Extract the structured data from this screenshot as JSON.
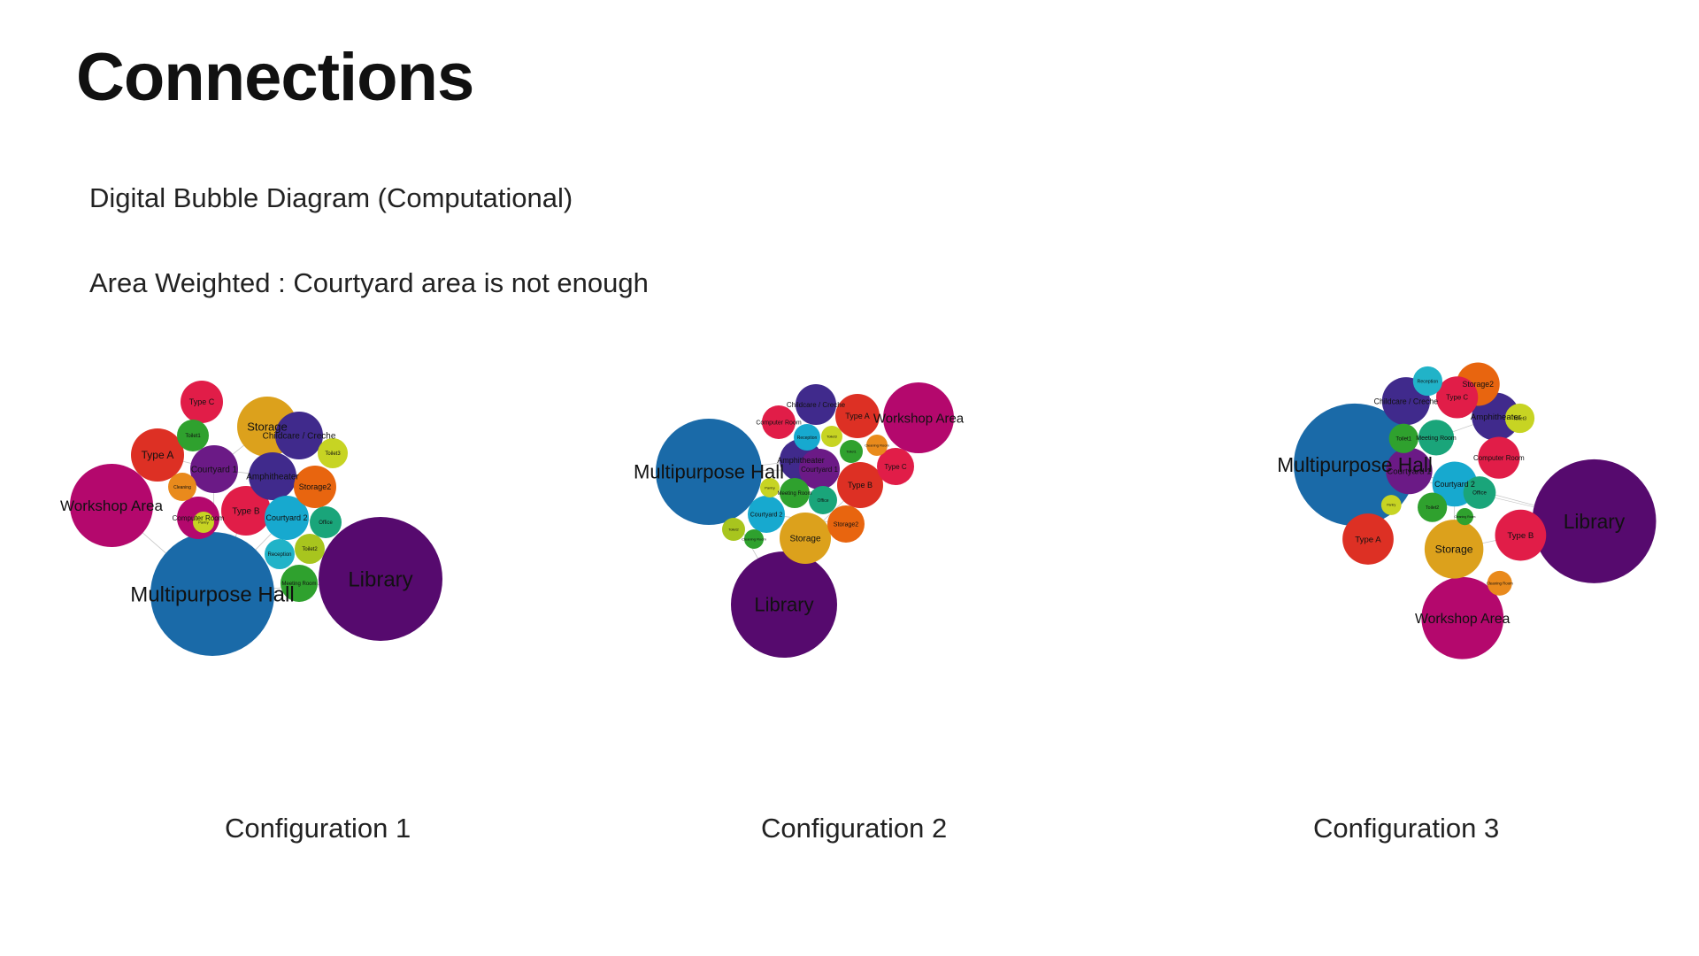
{
  "page": {
    "title": "Connections",
    "subtitle": "Digital Bubble Diagram (Computational)",
    "note": "Area Weighted : Courtyard area is not enough"
  },
  "colors": {
    "blue": "#1a6aa8",
    "purple": "#560a6e",
    "magenta": "#b4086d",
    "indigo": "#402a8c",
    "crimson": "#e11d48",
    "red": "#dd3024",
    "gold": "#dca11c",
    "orange": "#e8650f",
    "light-orange": "#e98a1c",
    "green": "#2fa12e",
    "lime": "#a8c51e",
    "yellow-green": "#c7d423",
    "cyan": "#17a9cf",
    "teal": "#1aa57a",
    "sky": "#21b3c8",
    "violet": "#6b1a86"
  },
  "diagrams": [
    {
      "caption": "Configuration 1",
      "bubbles": [
        {
          "label": "Type C",
          "color": "#e11d48"
        },
        {
          "label": "Toilet1",
          "color": "#2fa12e"
        },
        {
          "label": "Storage",
          "color": "#dca11c"
        },
        {
          "label": "Childcare / Creche",
          "color": "#402a8c"
        },
        {
          "label": "Type A",
          "color": "#dd3024"
        },
        {
          "label": "Toilet3",
          "color": "#c7d423"
        },
        {
          "label": "Courtyard 1",
          "color": "#6b1a86"
        },
        {
          "label": "Amphitheater",
          "color": "#402a8c"
        },
        {
          "label": "Cleaning",
          "color": "#e98a1c"
        },
        {
          "label": "Storage2",
          "color": "#e8650f"
        },
        {
          "label": "Workshop Area",
          "color": "#b4086d"
        },
        {
          "label": "Type B",
          "color": "#e11d48"
        },
        {
          "label": "Computer Room",
          "color": "#b4086d"
        },
        {
          "label": "Pantry",
          "color": "#c7d423"
        },
        {
          "label": "Courtyard 2",
          "color": "#17a9cf"
        },
        {
          "label": "Office",
          "color": "#1aa57a"
        },
        {
          "label": "Reception",
          "color": "#21b3c8"
        },
        {
          "label": "Toilet2",
          "color": "#a8c51e"
        },
        {
          "label": "Meeting Room",
          "color": "#2fa12e"
        },
        {
          "label": "Multipurpose Hall",
          "color": "#1a6aa8"
        },
        {
          "label": "Library",
          "color": "#560a6e"
        }
      ]
    },
    {
      "caption": "Configuration 2",
      "bubbles": [
        {
          "label": "Multipurpose Hall",
          "color": "#1a6aa8"
        },
        {
          "label": "Library",
          "color": "#560a6e"
        },
        {
          "label": "Workshop Area",
          "color": "#b4086d"
        },
        {
          "label": "Childcare / Creche",
          "color": "#402a8c"
        },
        {
          "label": "Computer Room",
          "color": "#e11d48"
        },
        {
          "label": "Type A",
          "color": "#dd3024"
        },
        {
          "label": "Amphitheater",
          "color": "#402a8c"
        },
        {
          "label": "Reception",
          "color": "#17a9cf"
        },
        {
          "label": "Toilet3",
          "color": "#c7d423"
        },
        {
          "label": "Toilet1",
          "color": "#2fa12e"
        },
        {
          "label": "Cleaning Room",
          "color": "#e98a1c"
        },
        {
          "label": "Type C",
          "color": "#e11d48"
        },
        {
          "label": "Courtyard 1",
          "color": "#6b1a86"
        },
        {
          "label": "Type B",
          "color": "#dd3024"
        },
        {
          "label": "Pantry",
          "color": "#c7d423"
        },
        {
          "label": "Meeting Room",
          "color": "#2fa12e"
        },
        {
          "label": "Office",
          "color": "#1aa57a"
        },
        {
          "label": "Courtyard 2",
          "color": "#17a9cf"
        },
        {
          "label": "Storage2",
          "color": "#e8650f"
        },
        {
          "label": "Storage",
          "color": "#dca11c"
        },
        {
          "label": "Toilet2",
          "color": "#a8c51e"
        },
        {
          "label": "Cleaning Room",
          "color": "#2fa12e"
        }
      ]
    },
    {
      "caption": "Configuration 3",
      "bubbles": [
        {
          "label": "Reception",
          "color": "#21b3c8"
        },
        {
          "label": "Storage2",
          "color": "#e8650f"
        },
        {
          "label": "Childcare / Creche",
          "color": "#402a8c"
        },
        {
          "label": "Type C",
          "color": "#e11d48"
        },
        {
          "label": "Amphitheater",
          "color": "#402a8c"
        },
        {
          "label": "Toilet3",
          "color": "#c7d423"
        },
        {
          "label": "Multipurpose Hall",
          "color": "#1a6aa8"
        },
        {
          "label": "Toilet1",
          "color": "#2fa12e"
        },
        {
          "label": "Meeting Room",
          "color": "#1aa57a"
        },
        {
          "label": "Computer Room",
          "color": "#e11d48"
        },
        {
          "label": "Courtyard 1",
          "color": "#6b1a86"
        },
        {
          "label": "Courtyard 2",
          "color": "#17a9cf"
        },
        {
          "label": "Office",
          "color": "#1aa57a"
        },
        {
          "label": "Library",
          "color": "#560a6e"
        },
        {
          "label": "Pantry",
          "color": "#c7d423"
        },
        {
          "label": "Toilet2",
          "color": "#2fa12e"
        },
        {
          "label": "Cleaning Room",
          "color": "#2fa12e"
        },
        {
          "label": "Type A",
          "color": "#dd3024"
        },
        {
          "label": "Storage",
          "color": "#dca11c"
        },
        {
          "label": "Type B",
          "color": "#e11d48"
        },
        {
          "label": "Cleaning Room",
          "color": "#e98a1c"
        },
        {
          "label": "Workshop Area",
          "color": "#b4086d"
        }
      ]
    }
  ]
}
